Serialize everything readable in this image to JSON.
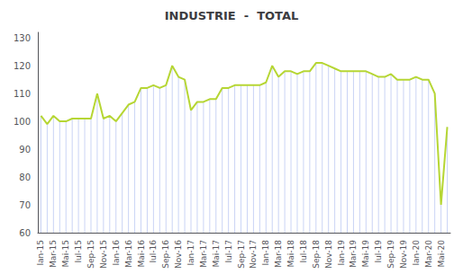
{
  "chart_data": {
    "type": "line",
    "title": "INDUSTRIE  -  TOTAL",
    "categories": [
      "Ian-15",
      null,
      "Mar-15",
      null,
      "Mai-15",
      null,
      "Iul-15",
      null,
      "Sep-15",
      null,
      "Nov-15",
      null,
      "Ian-16",
      null,
      "Mar-16",
      null,
      "Mai-16",
      null,
      "Iul-16",
      null,
      "Sep-16",
      null,
      "Nov-16",
      null,
      "Ian-17",
      null,
      "Mar-17",
      null,
      "Mai-17",
      null,
      "Iul-17",
      null,
      "Sep-17",
      null,
      "Nov-17",
      null,
      "Ian-18",
      null,
      "Mar-18",
      null,
      "Mai-18",
      null,
      "Iul-18",
      null,
      "Sep-18",
      null,
      "Nov-18",
      null,
      "Ian-19",
      null,
      "Mar-19",
      null,
      "Mai-19",
      null,
      "Iul-19",
      null,
      "Sep-19",
      null,
      "Nov-19",
      null,
      "Ian-20",
      null,
      "Mar-20",
      null,
      "Mai-20",
      null
    ],
    "values": [
      102,
      99,
      102,
      100,
      100,
      101,
      101,
      101,
      101,
      110,
      101,
      102,
      100,
      103,
      106,
      107,
      112,
      112,
      113,
      112,
      113,
      120,
      116,
      115,
      104,
      107,
      107,
      108,
      108,
      112,
      112,
      113,
      113,
      113,
      113,
      113,
      114,
      120,
      116,
      118,
      118,
      117,
      118,
      118,
      121,
      121,
      120,
      119,
      118,
      118,
      118,
      118,
      118,
      117,
      116,
      116,
      117,
      115,
      115,
      115,
      116,
      115,
      115,
      110,
      70,
      98
    ],
    "ylim": [
      60,
      132
    ],
    "yticks": [
      60,
      70,
      80,
      90,
      100,
      110,
      120,
      130
    ],
    "grid": false
  }
}
